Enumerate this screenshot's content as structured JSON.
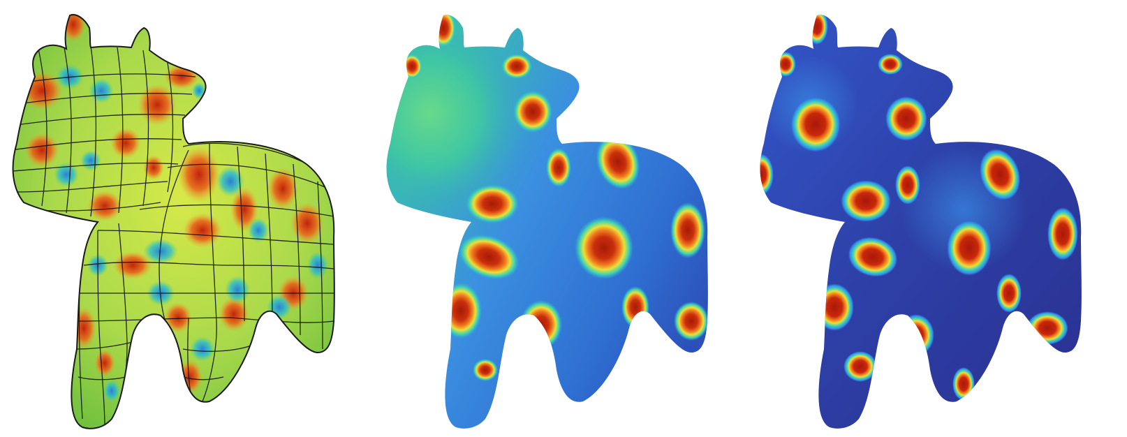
{
  "figure": {
    "panels": [
      {
        "id": "left",
        "icon": "cow-mesh-quad-wireframe",
        "colormap": "jet-like"
      },
      {
        "id": "middle",
        "icon": "cow-smooth-scalar-field",
        "colormap": "jet-like"
      },
      {
        "id": "right",
        "icon": "cow-spotted-scalar-field",
        "colormap": "jet-like"
      }
    ],
    "colors": {
      "background": "#ffffff",
      "deep_blue": "#27308f",
      "blue": "#2f7fe0",
      "cyan": "#22c3c9",
      "green": "#8fd94a",
      "yellow": "#e8d93a",
      "orange": "#f08a25",
      "red": "#b0200a"
    }
  }
}
